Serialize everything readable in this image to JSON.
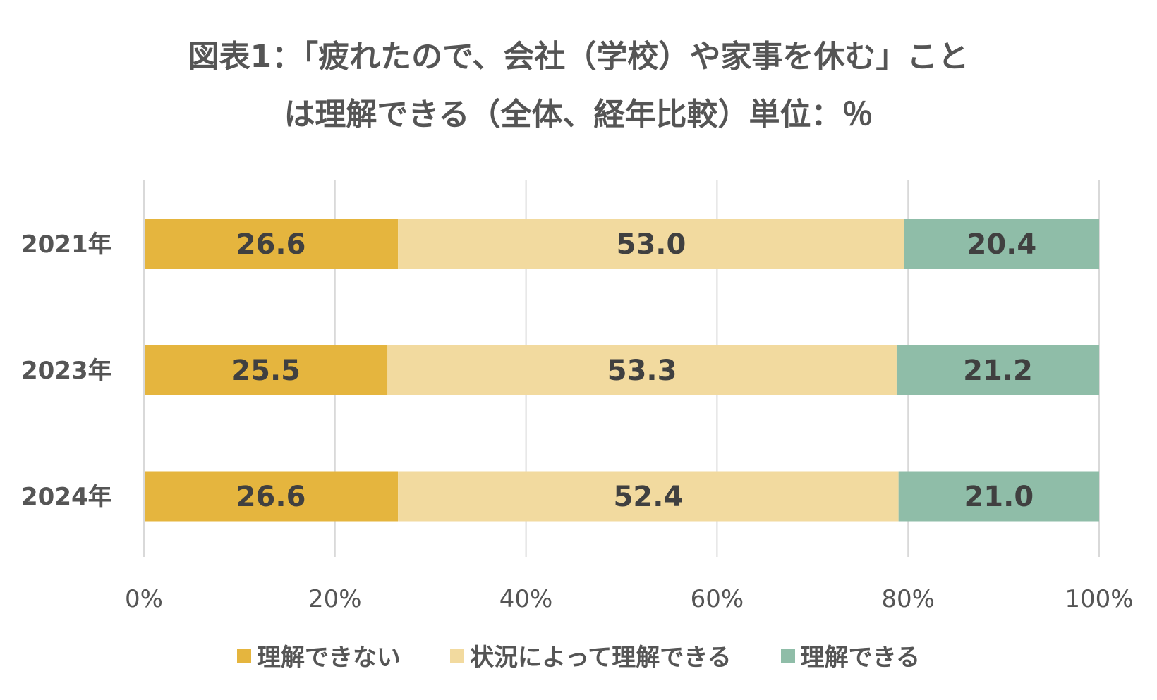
{
  "chart_data": {
    "type": "bar",
    "orientation": "horizontal",
    "stacked": true,
    "title_lines": [
      "図表1：「疲れたので、会社（学校）や家事を休む」こと",
      "は理解できる（全体、経年比較）単位：％"
    ],
    "categories": [
      "2021年",
      "2023年",
      "2024年"
    ],
    "series": [
      {
        "name": "理解できない",
        "color": "#E5B53E",
        "values": [
          26.6,
          25.5,
          26.6
        ],
        "labels": [
          "26.6",
          "25.5",
          "26.6"
        ]
      },
      {
        "name": "状況によって理解できる",
        "color": "#F2DA9F",
        "values": [
          53.0,
          53.3,
          52.4
        ],
        "labels": [
          "53.0",
          "53.3",
          "52.4"
        ]
      },
      {
        "name": "理解できる",
        "color": "#8FBDA8",
        "values": [
          20.4,
          21.2,
          21.0
        ],
        "labels": [
          "20.4",
          "21.2",
          "21.0"
        ]
      }
    ],
    "xlim": [
      0,
      100
    ],
    "xticks": [
      0,
      20,
      40,
      60,
      80,
      100
    ],
    "xtick_labels": [
      "0%",
      "20%",
      "40%",
      "60%",
      "80%",
      "100%"
    ],
    "grid": true,
    "legend_position": "bottom"
  }
}
